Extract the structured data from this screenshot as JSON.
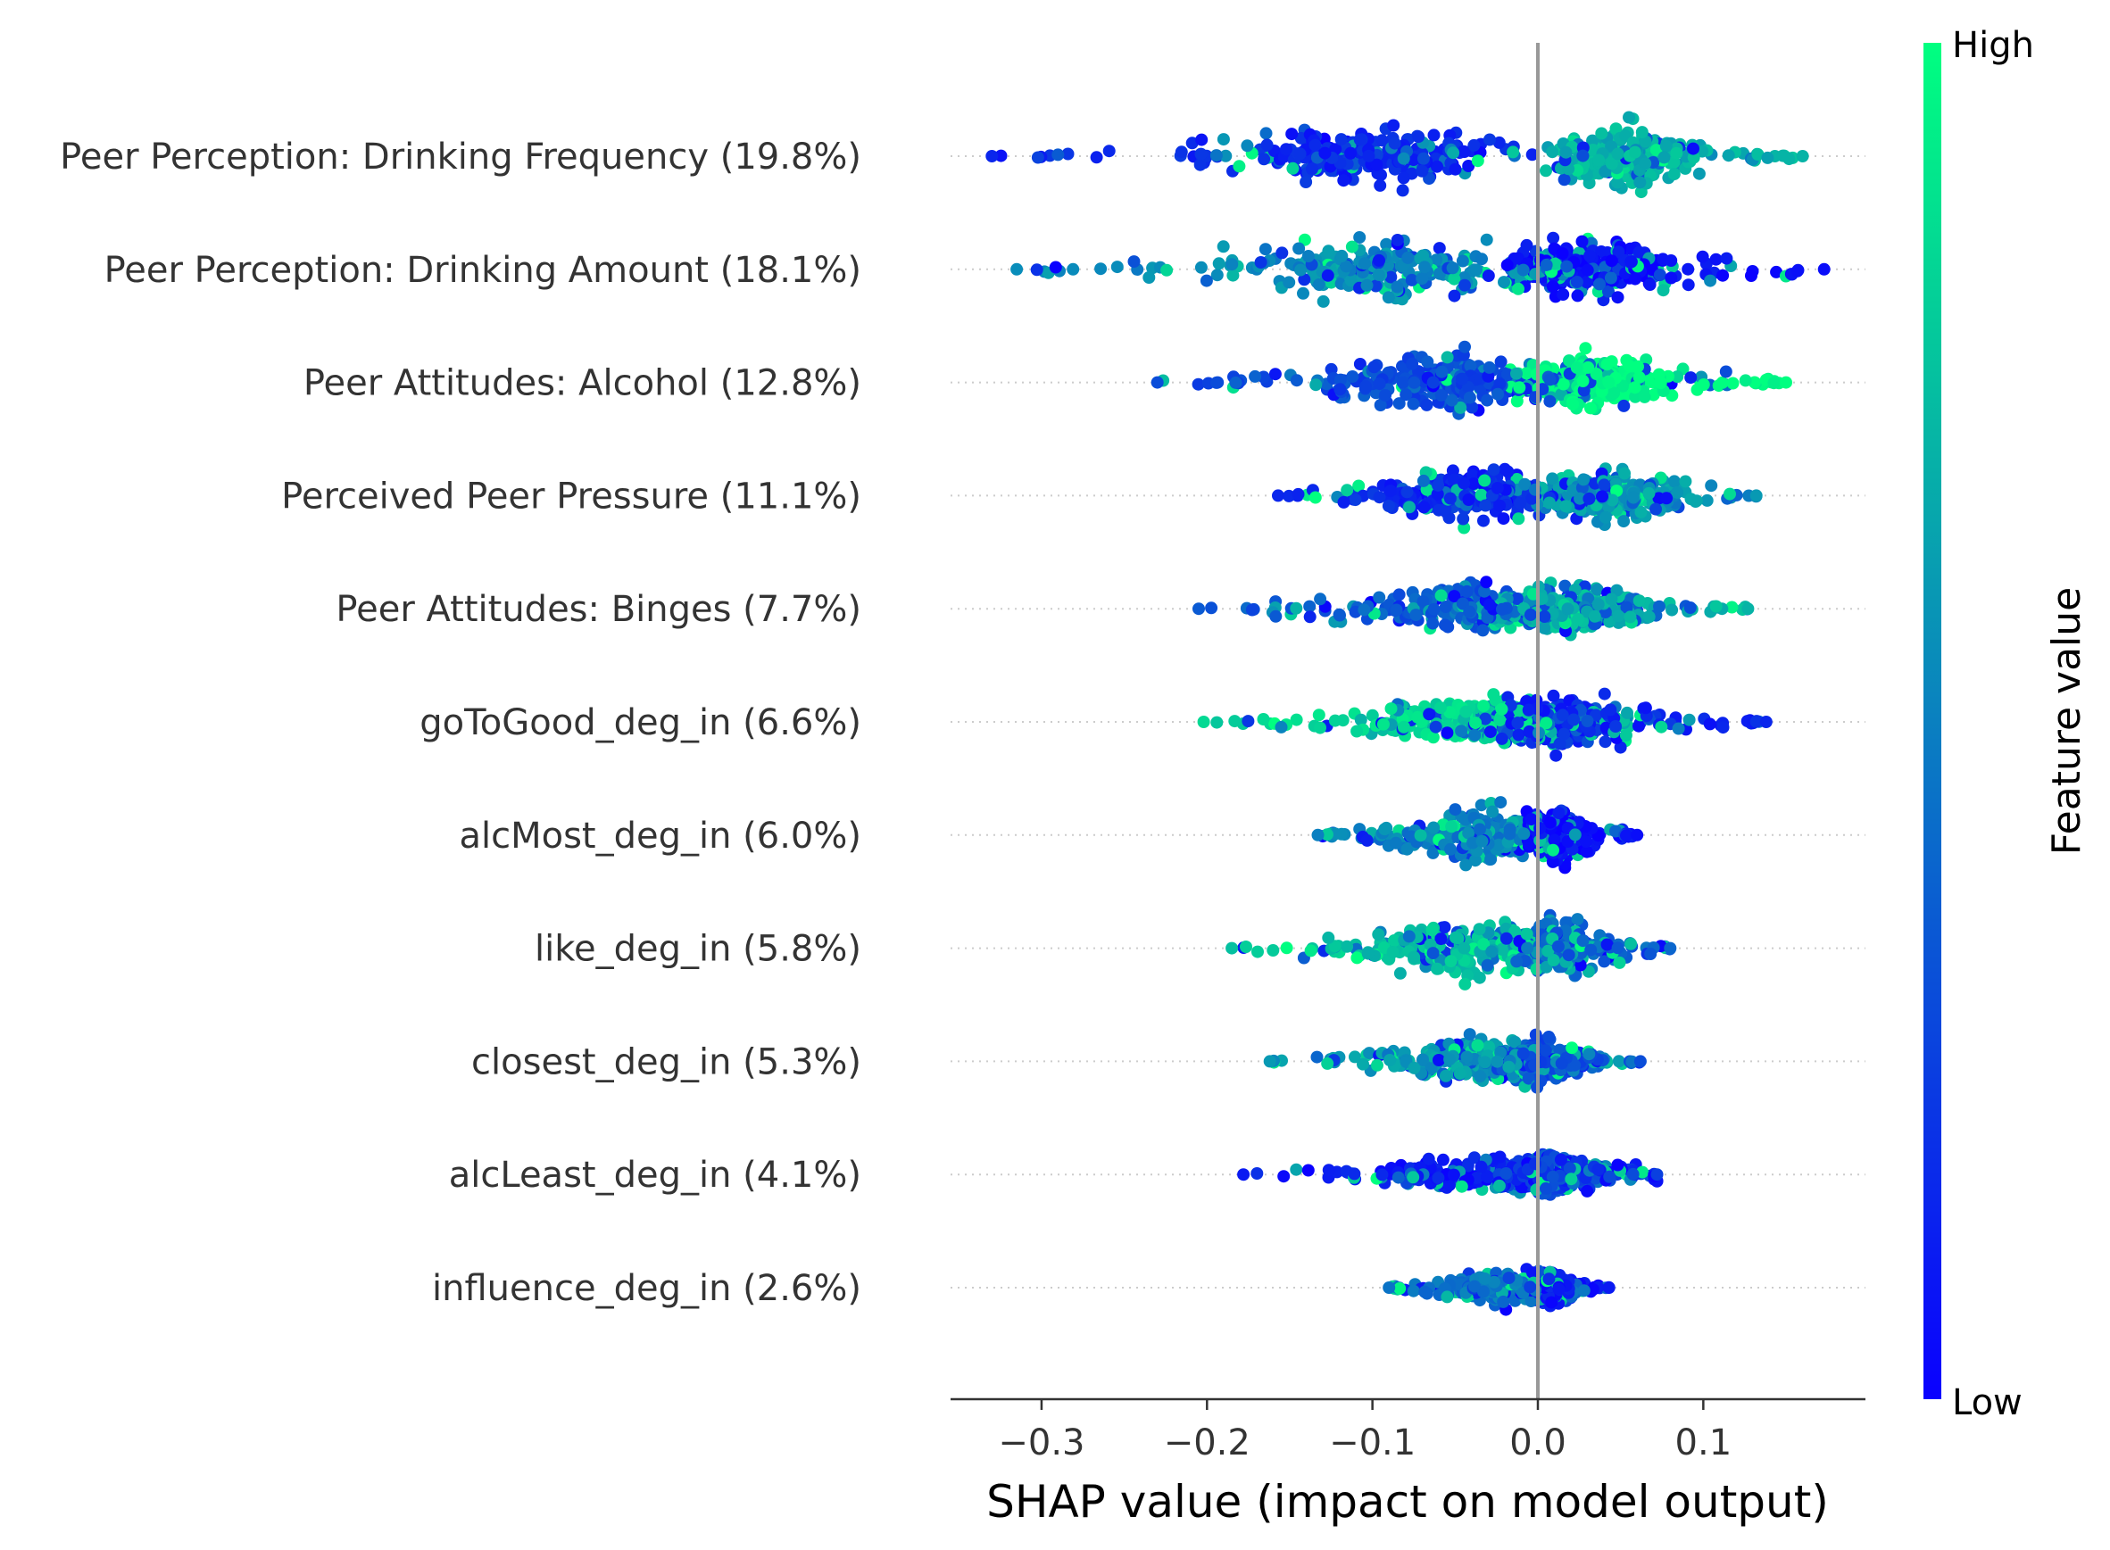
{
  "chart_data": {
    "type": "scatter",
    "subtype": "shap-beeswarm",
    "title": "",
    "xlabel": "SHAP value (impact on model output)",
    "xlim": [
      -0.355,
      0.198
    ],
    "xticks": [
      -0.3,
      -0.2,
      -0.1,
      0.0,
      0.1
    ],
    "xtick_labels": [
      "−0.3",
      "−0.2",
      "−0.1",
      "0.0",
      "0.1"
    ],
    "zero_line": 0.0,
    "colorbar": {
      "title": "Feature value",
      "high_label": "High",
      "low_label": "Low",
      "low_color": "#0a00ff",
      "high_color": "#00ff80"
    },
    "features": [
      {
        "label": "Peer Perception: Drinking Frequency (19.8%)",
        "min": -0.33,
        "max": 0.16,
        "neg_peak": -0.1,
        "pos_peak": 0.05,
        "neg_color": 0.15,
        "pos_color": 0.7,
        "mixed": 0.3,
        "width": 1.0
      },
      {
        "label": "Peer Perception: Drinking Amount (18.1%)",
        "min": -0.315,
        "max": 0.173,
        "neg_peak": -0.09,
        "pos_peak": 0.03,
        "neg_color": 0.55,
        "pos_color": 0.05,
        "mixed": 0.35,
        "width": 1.0
      },
      {
        "label": "Peer Attitudes: Alcohol (12.8%)",
        "min": -0.23,
        "max": 0.15,
        "neg_peak": -0.05,
        "pos_peak": 0.035,
        "neg_color": 0.3,
        "pos_color": 1.0,
        "mixed": 0.2,
        "width": 1.0
      },
      {
        "label": "Perceived Peer Pressure (11.1%)",
        "min": -0.157,
        "max": 0.132,
        "neg_peak": -0.04,
        "pos_peak": 0.04,
        "neg_color": 0.15,
        "pos_color": 0.6,
        "mixed": 0.35,
        "width": 0.95
      },
      {
        "label": "Peer Attitudes: Binges (7.7%)",
        "min": -0.205,
        "max": 0.127,
        "neg_peak": -0.03,
        "pos_peak": 0.02,
        "neg_color": 0.35,
        "pos_color": 0.7,
        "mixed": 0.35,
        "width": 0.85
      },
      {
        "label": "goToGood_deg_in (6.6%)",
        "min": -0.202,
        "max": 0.138,
        "neg_peak": -0.03,
        "pos_peak": 0.01,
        "neg_color": 0.85,
        "pos_color": 0.15,
        "mixed": 0.3,
        "width": 0.9
      },
      {
        "label": "alcMost_deg_in (6.0%)",
        "min": -0.133,
        "max": 0.06,
        "neg_peak": -0.03,
        "pos_peak": 0.01,
        "neg_color": 0.5,
        "pos_color": 0.05,
        "mixed": 0.3,
        "width": 0.95
      },
      {
        "label": "like_deg_in (5.8%)",
        "min": -0.185,
        "max": 0.08,
        "neg_peak": -0.04,
        "pos_peak": 0.01,
        "neg_color": 0.75,
        "pos_color": 0.4,
        "mixed": 0.45,
        "width": 0.95
      },
      {
        "label": "closest_deg_in (5.3%)",
        "min": -0.162,
        "max": 0.062,
        "neg_peak": -0.03,
        "pos_peak": 0.0,
        "neg_color": 0.6,
        "pos_color": 0.3,
        "mixed": 0.4,
        "width": 0.8
      },
      {
        "label": "alcLeast_deg_in (4.1%)",
        "min": -0.178,
        "max": 0.072,
        "neg_peak": -0.02,
        "pos_peak": 0.005,
        "neg_color": 0.1,
        "pos_color": 0.25,
        "mixed": 0.3,
        "width": 0.75
      },
      {
        "label": "influence_deg_in (2.6%)",
        "min": -0.09,
        "max": 0.043,
        "neg_peak": -0.02,
        "pos_peak": 0.005,
        "neg_color": 0.45,
        "pos_color": 0.1,
        "mixed": 0.3,
        "width": 0.6
      }
    ]
  }
}
